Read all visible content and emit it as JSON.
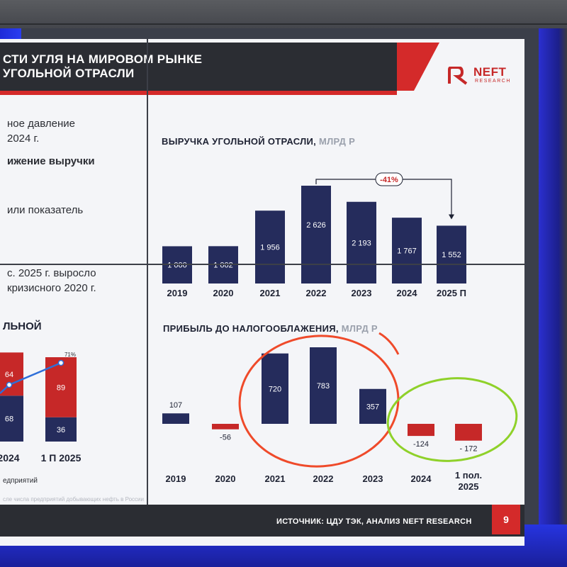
{
  "slide": {
    "header_line1": "СТИ УГЛЯ НА МИРОВОМ РЫНКЕ",
    "header_line2": "УГОЛЬНОЙ ОТРАСЛИ",
    "logo_text": "NEFT",
    "logo_sub": "RESEARCH",
    "left_texts": [
      {
        "text": "ное давление",
        "bold": false
      },
      {
        "text": "2024 г.",
        "bold": false
      },
      {
        "text": "ижение выручки",
        "bold": true
      },
      {
        "text": "или показатель",
        "bold": false
      },
      {
        "text": "с. 2025 г. выросло",
        "bold": false
      },
      {
        "text": "кризисного 2020 г.",
        "bold": false
      }
    ],
    "left_chart_title": "ЛЬНОЙ",
    "left_legend_note": "едприятий",
    "source_note": "сле числа предприятий добывающих нефть в России",
    "footer_source": "ИСТОЧНИК: ЦДУ ТЭК, АНАЛИЗ NEFT RESEARCH",
    "page_number": "9"
  },
  "colors": {
    "bar_navy": "#252c5c",
    "bar_red": "#c62828",
    "header_dark": "#2b2d33",
    "accent_red": "#d42a2a",
    "annotation_red": "#ef4a2a",
    "annotation_green": "#8fd12a",
    "line_blue": "#2f6fd8"
  },
  "chart_data": [
    {
      "type": "bar",
      "title": "ВЫРУЧКА УГОЛЬНОЙ ОТРАСЛИ,",
      "unit": "МЛРД Р",
      "categories": [
        "2019",
        "2020",
        "2021",
        "2022",
        "2023",
        "2024",
        "2025 П"
      ],
      "values": [
        1000,
        1002,
        1956,
        2626,
        2193,
        1767,
        1552
      ],
      "value_labels": [
        "1 000",
        "1 002",
        "1 956",
        "2 626",
        "2 193",
        "1 767",
        "1 552"
      ],
      "annotation": {
        "label": "-41%",
        "from": "2022",
        "to": "2025 П"
      }
    },
    {
      "type": "bar",
      "title": "ПРИБЫЛЬ ДО НАЛОГООБЛАЖЕНИЯ,",
      "unit": "МЛРД Р",
      "categories": [
        "2019",
        "2020",
        "2021",
        "2022",
        "2023",
        "2024",
        "1 пол. 2025"
      ],
      "values": [
        107,
        -56,
        720,
        783,
        357,
        -124,
        -172
      ],
      "value_labels": [
        "107",
        "-56",
        "720",
        "783",
        "357",
        "-124",
        "- 172"
      ]
    },
    {
      "type": "bar",
      "stacked": true,
      "partial": true,
      "categories": [
        "2024",
        "1 П 2025"
      ],
      "series": [
        {
          "values": [
            68,
            36
          ]
        },
        {
          "values": [
            64,
            89
          ]
        }
      ],
      "line_label": "71%"
    }
  ]
}
